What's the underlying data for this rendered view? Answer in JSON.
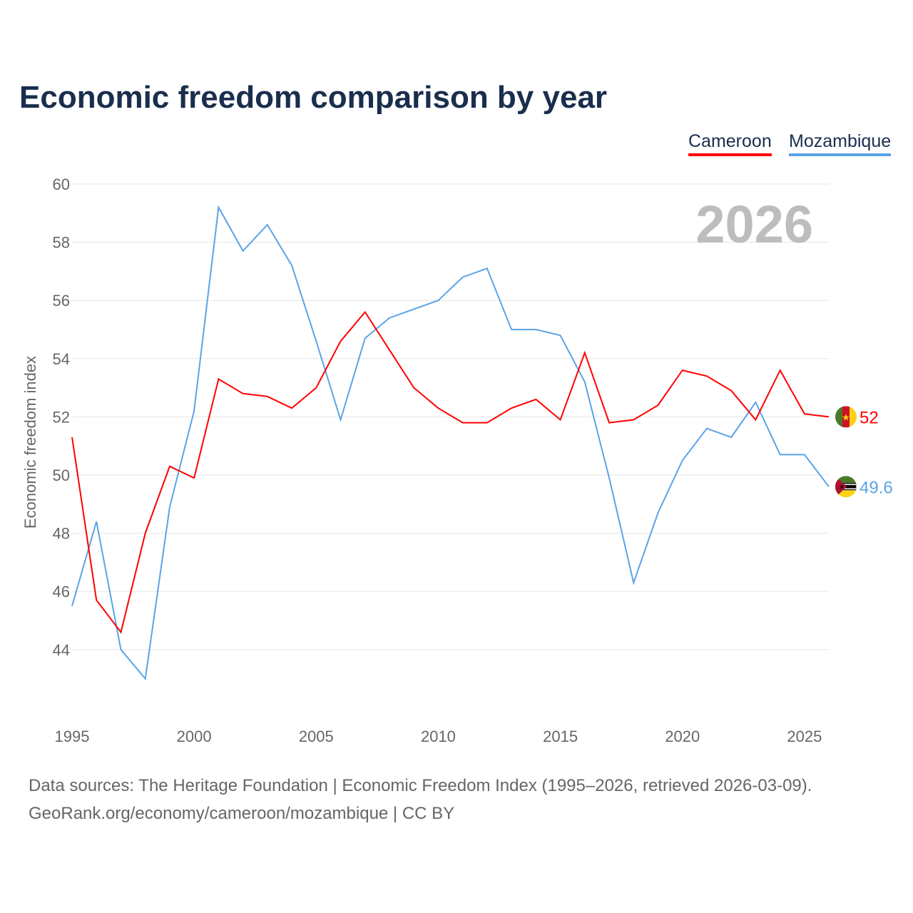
{
  "chart_data": {
    "type": "line",
    "title": "Economic freedom comparison by year",
    "xlabel": "",
    "ylabel": "Economic freedom index",
    "xlim": [
      1995,
      2026
    ],
    "ylim": [
      42,
      60
    ],
    "yticks": [
      44,
      46,
      48,
      50,
      52,
      54,
      56,
      58,
      60
    ],
    "xticks": [
      1995,
      2000,
      2005,
      2010,
      2015,
      2020,
      2025
    ],
    "grid": true,
    "legend_position": "top-right",
    "year_watermark": "2026",
    "x": [
      1995,
      1996,
      1997,
      1998,
      1999,
      2000,
      2001,
      2002,
      2003,
      2004,
      2005,
      2006,
      2007,
      2008,
      2009,
      2010,
      2011,
      2012,
      2013,
      2014,
      2015,
      2016,
      2017,
      2018,
      2019,
      2020,
      2021,
      2022,
      2023,
      2024,
      2025,
      2026
    ],
    "series": [
      {
        "name": "Cameroon",
        "color": "#ff0000",
        "end_label": "52",
        "values": [
          51.3,
          45.7,
          44.6,
          48.0,
          50.3,
          49.9,
          53.3,
          52.8,
          52.7,
          52.3,
          53.0,
          54.6,
          55.6,
          54.3,
          53.0,
          52.3,
          51.8,
          51.8,
          52.3,
          52.6,
          51.9,
          54.2,
          51.8,
          51.9,
          52.4,
          53.6,
          53.4,
          52.9,
          51.9,
          53.6,
          52.1,
          52.0
        ]
      },
      {
        "name": "Mozambique",
        "color": "#5ba4e8",
        "end_label": "49.6",
        "values": [
          45.5,
          48.4,
          44.0,
          43.0,
          48.9,
          52.2,
          59.2,
          57.7,
          58.6,
          57.2,
          54.6,
          51.9,
          54.7,
          55.4,
          55.7,
          56.0,
          56.8,
          57.1,
          55.0,
          55.0,
          54.8,
          53.2,
          49.9,
          46.3,
          48.7,
          50.5,
          51.6,
          51.3,
          52.5,
          50.7,
          50.7,
          49.6
        ]
      }
    ]
  },
  "footer": {
    "line1": "Data sources: The Heritage Foundation | Economic Freedom Index (1995–2026, retrieved 2026-03-09).",
    "line2": "GeoRank.org/economy/cameroon/mozambique | CC BY"
  }
}
